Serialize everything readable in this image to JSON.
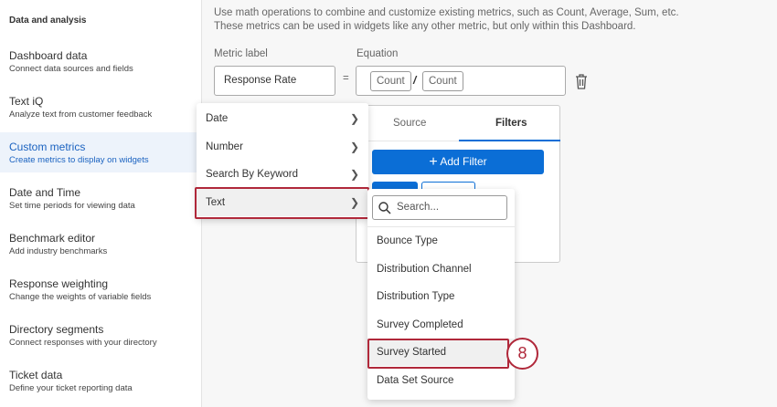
{
  "sidebar": {
    "heading": "Data and analysis",
    "items": [
      {
        "title": "Dashboard data",
        "subtitle": "Connect data sources and fields"
      },
      {
        "title": "Text iQ",
        "subtitle": "Analyze text from customer feedback"
      },
      {
        "title": "Custom metrics",
        "subtitle": "Create metrics to display on widgets",
        "active": true
      },
      {
        "title": "Date and Time",
        "subtitle": "Set time periods for viewing data"
      },
      {
        "title": "Benchmark editor",
        "subtitle": "Add industry benchmarks"
      },
      {
        "title": "Response weighting",
        "subtitle": "Change the weights of variable fields"
      },
      {
        "title": "Directory segments",
        "subtitle": "Connect responses with your directory"
      },
      {
        "title": "Ticket data",
        "subtitle": "Define your ticket reporting data"
      }
    ]
  },
  "main": {
    "description": [
      "Use math operations to combine and customize existing metrics, such as Count, Average, Sum, etc.",
      "These metrics can be used in widgets like any other metric, but only within this Dashboard."
    ],
    "metric_label": "Metric label",
    "equation_label": "Equation",
    "metric_value": "Response Rate",
    "equals": "=",
    "equation": {
      "left": "Count",
      "operator": "/",
      "right": "Count"
    }
  },
  "filter_panel": {
    "tabs": [
      "Source",
      "Filters"
    ],
    "active_tab": "Filters",
    "add_filter": "Add Filter"
  },
  "field_menu": {
    "items": [
      "Date",
      "Number",
      "Search By Keyword",
      "Text"
    ],
    "selected": "Text"
  },
  "text_menu": {
    "search_placeholder": "Search...",
    "items": [
      "Bounce Type",
      "Distribution Channel",
      "Distribution Type",
      "Survey Completed",
      "Survey Started",
      "Data Set Source"
    ],
    "selected": "Survey Started"
  },
  "step_badge": "8",
  "colors": {
    "accent": "#0b6ed6",
    "highlight_border": "#b0283a",
    "active_text": "#1a62c0"
  }
}
